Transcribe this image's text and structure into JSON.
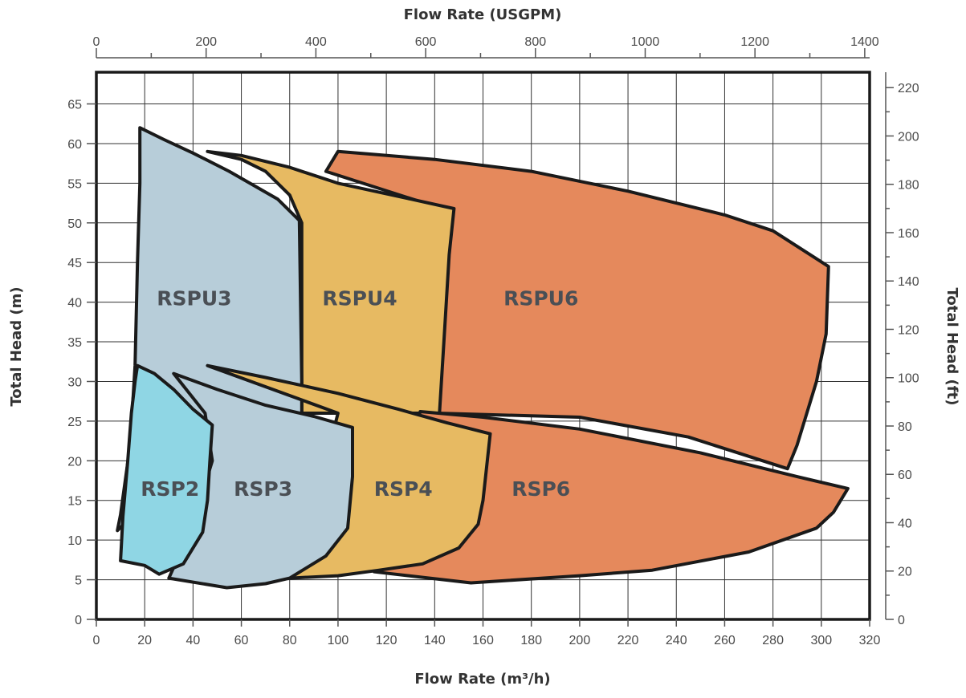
{
  "chart_data": {
    "type": "area",
    "title": "",
    "x_bottom": {
      "label": "Flow Rate (m³/h)",
      "range": [
        0,
        320
      ],
      "ticks": [
        0,
        20,
        40,
        60,
        80,
        100,
        120,
        140,
        160,
        180,
        200,
        220,
        240,
        260,
        280,
        300,
        320
      ]
    },
    "x_top": {
      "label": "Flow Rate (USGPM)",
      "range": [
        0,
        1408.96
      ],
      "ticks": [
        0,
        200,
        400,
        600,
        800,
        1000,
        1200,
        1400
      ]
    },
    "y_left": {
      "label": "Total Head (m)",
      "range": [
        0,
        69
      ],
      "ticks": [
        0,
        5,
        10,
        15,
        20,
        25,
        30,
        35,
        40,
        45,
        50,
        55,
        60,
        65
      ]
    },
    "y_right": {
      "label": "Total Head (ft)",
      "range": [
        0,
        226.38
      ],
      "ticks": [
        0,
        20,
        40,
        60,
        80,
        100,
        120,
        140,
        160,
        180,
        200,
        220
      ]
    },
    "grid": true,
    "series": [
      {
        "name": "RSPU6",
        "color": "#e5895c",
        "label_at": [
          184,
          40.5
        ],
        "points": [
          [
            95,
            56.5
          ],
          [
            100,
            59
          ],
          [
            140,
            58
          ],
          [
            180,
            56.5
          ],
          [
            220,
            54
          ],
          [
            260,
            51
          ],
          [
            280,
            49
          ],
          [
            303,
            44.5
          ],
          [
            302,
            36
          ],
          [
            298,
            30
          ],
          [
            290,
            22
          ],
          [
            286,
            19
          ],
          [
            245,
            23
          ],
          [
            200,
            25.5
          ],
          [
            141,
            26
          ],
          [
            142,
            46
          ],
          [
            141,
            52
          ]
        ]
      },
      {
        "name": "RSPU4",
        "color": "#e7ba62",
        "label_at": [
          109,
          40.5
        ],
        "points": [
          [
            46,
            59
          ],
          [
            60,
            58.5
          ],
          [
            80,
            57
          ],
          [
            100,
            55
          ],
          [
            130,
            53
          ],
          [
            148,
            51.8
          ],
          [
            146,
            46
          ],
          [
            144,
            36
          ],
          [
            142,
            26
          ],
          [
            85,
            26
          ],
          [
            85,
            50
          ],
          [
            80,
            53.5
          ],
          [
            70,
            56.5
          ],
          [
            60,
            58
          ]
        ]
      },
      {
        "name": "RSPU3",
        "color": "#b7cdd9",
        "label_at": [
          40.5,
          40.5
        ],
        "points": [
          [
            18,
            62
          ],
          [
            28,
            60.5
          ],
          [
            40,
            58.8
          ],
          [
            55,
            56.5
          ],
          [
            75,
            53
          ],
          [
            84,
            50.3
          ],
          [
            84.5,
            40
          ],
          [
            85,
            30
          ],
          [
            85,
            22
          ],
          [
            40,
            22
          ],
          [
            30,
            20
          ],
          [
            25,
            17
          ],
          [
            18,
            14
          ],
          [
            8.7,
            11.2
          ],
          [
            10,
            13.2
          ],
          [
            14,
            22
          ],
          [
            16,
            32
          ],
          [
            17,
            45
          ],
          [
            18,
            55
          ],
          [
            18,
            60
          ]
        ]
      },
      {
        "name": "RSP6",
        "color": "#e5895c",
        "label_at": [
          184,
          16.5
        ],
        "points": [
          [
            134,
            26.2
          ],
          [
            160,
            25.5
          ],
          [
            200,
            24
          ],
          [
            250,
            21
          ],
          [
            290,
            18
          ],
          [
            311,
            16.5
          ],
          [
            305,
            13.5
          ],
          [
            298,
            11.5
          ],
          [
            270,
            8.5
          ],
          [
            230,
            6.2
          ],
          [
            200,
            5.5
          ],
          [
            155,
            4.6
          ],
          [
            115,
            6
          ]
        ]
      },
      {
        "name": "RSP4",
        "color": "#e7ba62",
        "label_at": [
          127,
          16.5
        ],
        "points": [
          [
            46,
            32
          ],
          [
            70,
            30.5
          ],
          [
            100,
            28.5
          ],
          [
            125,
            26.5
          ],
          [
            145,
            24.8
          ],
          [
            163,
            23.4
          ],
          [
            160,
            15
          ],
          [
            158,
            12
          ],
          [
            150,
            9
          ],
          [
            135,
            7
          ],
          [
            117,
            6.2
          ],
          [
            100,
            5.5
          ],
          [
            80,
            5.2
          ],
          [
            85,
            12
          ],
          [
            95,
            20
          ],
          [
            100,
            26
          ]
        ]
      },
      {
        "name": "RSP3",
        "color": "#b7cdd9",
        "label_at": [
          69,
          16.5
        ],
        "points": [
          [
            32,
            31
          ],
          [
            50,
            29
          ],
          [
            70,
            27
          ],
          [
            90,
            25.6
          ],
          [
            106,
            24.2
          ],
          [
            106,
            18
          ],
          [
            104,
            11.5
          ],
          [
            95,
            8
          ],
          [
            80,
            5.2
          ],
          [
            70,
            4.5
          ],
          [
            54,
            4
          ],
          [
            30,
            5.2
          ],
          [
            40,
            12
          ],
          [
            48,
            20
          ],
          [
            45,
            26
          ]
        ]
      },
      {
        "name": "RSP2",
        "color": "#8fd6e4",
        "label_at": [
          30.5,
          16.5
        ],
        "points": [
          [
            17,
            32
          ],
          [
            24,
            31
          ],
          [
            32,
            29
          ],
          [
            40,
            26.5
          ],
          [
            48,
            24.5
          ],
          [
            47,
            20
          ],
          [
            46,
            15
          ],
          [
            44,
            11
          ],
          [
            36,
            7
          ],
          [
            26,
            5.7
          ],
          [
            20,
            6.8
          ],
          [
            10,
            7.4
          ],
          [
            11,
            13
          ],
          [
            13,
            20
          ],
          [
            14.5,
            26
          ],
          [
            16,
            30
          ]
        ]
      }
    ]
  }
}
